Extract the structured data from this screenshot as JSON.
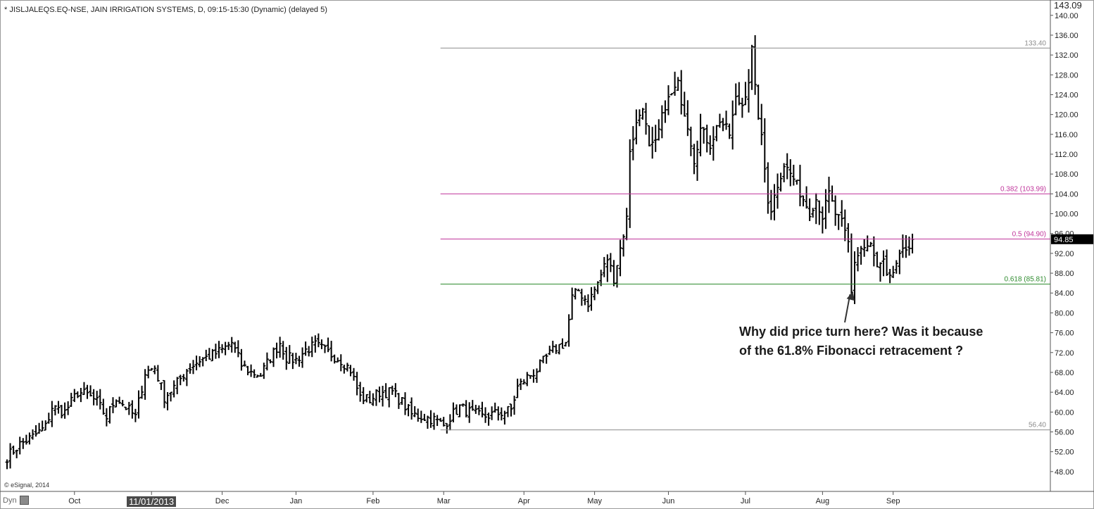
{
  "header": {
    "title": "* JISLJALEQS.EQ-NSE, JAIN IRRIGATION SYSTEMS, D, 09:15-15:30 (Dynamic) (delayed 5)"
  },
  "footer": {
    "credit": "© eSignal, 2014",
    "dyn_label": "Dyn",
    "cursor_date": "11/01/2013"
  },
  "annotation": {
    "text": "Why did price turn here? Was it because\nof the 61.8% Fibonacci retracement ?"
  },
  "colors": {
    "bars": "#000000",
    "grid": "#ffffff",
    "high_low_lines": "#8c8c8c",
    "fib_382": "#c0359b",
    "fib_50": "#c0359b",
    "fib_618": "#2e8b2e",
    "last_price_bg": "#000000"
  },
  "chart_data": {
    "type": "ohlc",
    "title": "",
    "xlabel": "",
    "ylabel": "",
    "ylim": [
      44.0,
      143.09
    ],
    "y_ticks": [
      "48.00",
      "52.00",
      "56.00",
      "60.00",
      "64.00",
      "68.00",
      "72.00",
      "76.00",
      "80.00",
      "84.00",
      "88.00",
      "92.00",
      "96.00",
      "100.00",
      "104.00",
      "108.00",
      "112.00",
      "116.00",
      "120.00",
      "124.00",
      "128.00",
      "132.00",
      "136.00",
      "140.00"
    ],
    "y_top_label": "143.09",
    "last_price": "94.85",
    "x_month_labels": [
      "Oct",
      "Nov",
      "Dec",
      "Jan",
      "Feb",
      "Mar",
      "Apr",
      "May",
      "Jun",
      "Jul",
      "Aug",
      "Sep"
    ],
    "x_month_index": [
      21,
      45,
      67,
      90,
      114,
      136,
      161,
      183,
      206,
      230,
      254,
      276
    ],
    "n_days": 290,
    "levels": [
      {
        "label": "133.40",
        "value": 133.4,
        "start_index": 135,
        "color_key": "high_low_lines"
      },
      {
        "label": "0.382 (103.99)",
        "value": 103.99,
        "start_index": 135,
        "color_key": "fib_382"
      },
      {
        "label": "0.5 (94.90)",
        "value": 94.9,
        "start_index": 135,
        "color_key": "fib_50"
      },
      {
        "label": "0.618 (85.81)",
        "value": 85.81,
        "start_index": 135,
        "color_key": "fib_618"
      },
      {
        "label": "56.40",
        "value": 56.4,
        "start_index": 135,
        "color_key": "high_low_lines"
      }
    ],
    "price_anchors": [
      [
        0,
        51
      ],
      [
        4,
        53.5
      ],
      [
        8,
        55
      ],
      [
        12,
        57
      ],
      [
        14,
        61
      ],
      [
        18,
        60
      ],
      [
        22,
        64
      ],
      [
        25,
        63.5
      ],
      [
        28,
        62
      ],
      [
        31,
        59
      ],
      [
        34,
        63
      ],
      [
        37,
        61
      ],
      [
        40,
        59
      ],
      [
        43,
        68
      ],
      [
        46,
        69
      ],
      [
        49,
        63
      ],
      [
        52,
        65
      ],
      [
        56,
        68.5
      ],
      [
        60,
        70.5
      ],
      [
        64,
        71.5
      ],
      [
        67,
        72.5
      ],
      [
        70,
        74
      ],
      [
        73,
        69.5
      ],
      [
        76,
        68
      ],
      [
        79,
        67.5
      ],
      [
        82,
        71
      ],
      [
        85,
        74
      ],
      [
        87,
        71
      ],
      [
        90,
        70.5
      ],
      [
        93,
        72.5
      ],
      [
        96,
        73.5
      ],
      [
        100,
        72
      ],
      [
        104,
        70.5
      ],
      [
        107,
        68.5
      ],
      [
        110,
        63
      ],
      [
        113,
        62.5
      ],
      [
        116,
        64
      ],
      [
        120,
        64
      ],
      [
        123,
        62
      ],
      [
        126,
        59.5
      ],
      [
        130,
        59
      ],
      [
        133,
        58.5
      ],
      [
        136,
        57.3
      ],
      [
        138,
        59
      ],
      [
        141,
        61
      ],
      [
        144,
        60
      ],
      [
        148,
        59
      ],
      [
        151,
        59.5
      ],
      [
        155,
        60
      ],
      [
        157,
        60.5
      ],
      [
        159,
        65
      ],
      [
        162,
        67
      ],
      [
        165,
        68.5
      ],
      [
        168,
        71
      ],
      [
        171,
        73
      ],
      [
        174,
        74
      ],
      [
        176,
        83
      ],
      [
        178,
        84.5
      ],
      [
        181,
        82
      ],
      [
        184,
        86
      ],
      [
        187,
        91
      ],
      [
        189,
        87
      ],
      [
        191,
        93
      ],
      [
        193,
        99
      ],
      [
        194,
        113
      ],
      [
        196,
        118
      ],
      [
        198,
        122
      ],
      [
        200,
        113
      ],
      [
        202,
        114
      ],
      [
        205,
        122
      ],
      [
        207,
        124
      ],
      [
        209,
        126
      ],
      [
        210,
        123
      ],
      [
        212,
        118
      ],
      [
        214,
        111
      ],
      [
        216,
        117
      ],
      [
        219,
        114
      ],
      [
        222,
        119
      ],
      [
        225,
        116
      ],
      [
        227,
        123
      ],
      [
        229,
        122
      ],
      [
        231,
        127
      ],
      [
        232,
        133
      ],
      [
        233,
        125
      ],
      [
        235,
        115
      ],
      [
        237,
        103
      ],
      [
        238,
        101
      ],
      [
        240,
        106
      ],
      [
        242,
        110
      ],
      [
        245,
        107
      ],
      [
        248,
        103
      ],
      [
        250,
        100.5
      ],
      [
        252,
        103
      ],
      [
        254,
        99.5
      ],
      [
        256,
        104
      ],
      [
        258,
        100
      ],
      [
        260,
        98
      ],
      [
        262,
        94
      ],
      [
        263,
        84
      ],
      [
        264,
        90.5
      ],
      [
        266,
        93
      ],
      [
        269,
        93.5
      ],
      [
        271,
        89
      ],
      [
        273,
        90
      ],
      [
        274,
        87
      ],
      [
        275,
        86.5
      ],
      [
        277,
        90
      ],
      [
        280,
        93
      ],
      [
        282,
        94.85
      ]
    ]
  }
}
